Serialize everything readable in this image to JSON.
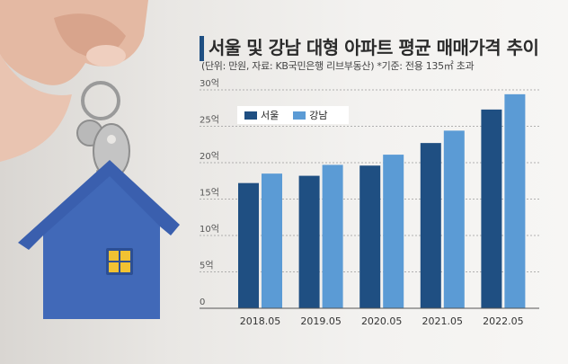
{
  "header": {
    "title": "서울 및 강남 대형 아파트 평균 매매가격 추이",
    "subtitle": "(단위: 만원, 자료: KB국민은행 리브부동산) *기준: 전용 135㎡ 초과"
  },
  "colors": {
    "seoul": "#1f4f82",
    "gangnam": "#5b9bd5",
    "accent": "#1f4f82"
  },
  "photo": {
    "description_icons": [
      "hand-holding-keys-icon",
      "house-keychain-icon"
    ]
  },
  "chart_data": {
    "type": "bar",
    "categories": [
      "2018.05",
      "2019.05",
      "2020.05",
      "2021.05",
      "2022.05"
    ],
    "series": [
      {
        "name": "서울",
        "values": [
          17.2,
          18.2,
          19.6,
          22.7,
          27.3
        ]
      },
      {
        "name": "강남",
        "values": [
          18.5,
          19.7,
          21.1,
          24.4,
          29.4
        ]
      }
    ],
    "y_ticks": [
      0,
      5,
      10,
      15,
      20,
      25,
      30
    ],
    "y_tick_labels": [
      "0",
      "5억",
      "10억",
      "15억",
      "20억",
      "25억",
      "30억"
    ],
    "ylim": [
      0,
      30
    ],
    "grid": true,
    "legend": "top-left"
  }
}
